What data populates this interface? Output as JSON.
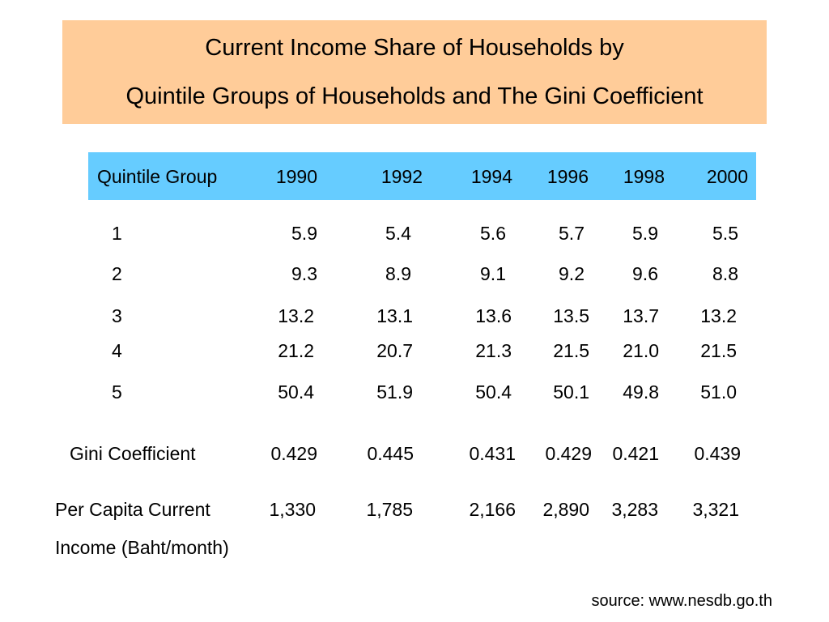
{
  "title": {
    "line1": "Current Income Share of Households by",
    "line2": "Quintile Groups of Households and The Gini Coefficient"
  },
  "header": {
    "group_label": "Quintile Group",
    "years": [
      "1990",
      "1992",
      "1994",
      "1996",
      "1998",
      "2000"
    ]
  },
  "rows": [
    {
      "group": "1",
      "values": [
        "5.9",
        "5.4",
        "5.6",
        "5.7",
        "5.9",
        "5.5"
      ]
    },
    {
      "group": "2",
      "values": [
        "9.3",
        "8.9",
        "9.1",
        "9.2",
        "9.6",
        "8.8"
      ]
    },
    {
      "group": "3",
      "values": [
        "13.2",
        "13.1",
        "13.6",
        "13.5",
        "13.7",
        "13.2"
      ]
    },
    {
      "group": "4",
      "values": [
        "21.2",
        "20.7",
        "21.3",
        "21.5",
        "21.0",
        "21.5"
      ]
    },
    {
      "group": "5",
      "values": [
        "50.4",
        "51.9",
        "50.4",
        "50.1",
        "49.8",
        "51.0"
      ]
    }
  ],
  "gini": {
    "label": "Gini Coefficient",
    "values": [
      "0.429",
      "0.445",
      "0.431",
      "0.429",
      "0.421",
      "0.439"
    ]
  },
  "income": {
    "label_line1": "Per Capita Current",
    "label_line2": "Income (Baht/month)",
    "values": [
      "1,330",
      "1,785",
      "2,166",
      "2,890",
      "3,283",
      "3,321"
    ]
  },
  "source": "source: www.nesdb.go.th",
  "colors": {
    "title_background": "#ffcc99",
    "header_background": "#66ccff"
  }
}
